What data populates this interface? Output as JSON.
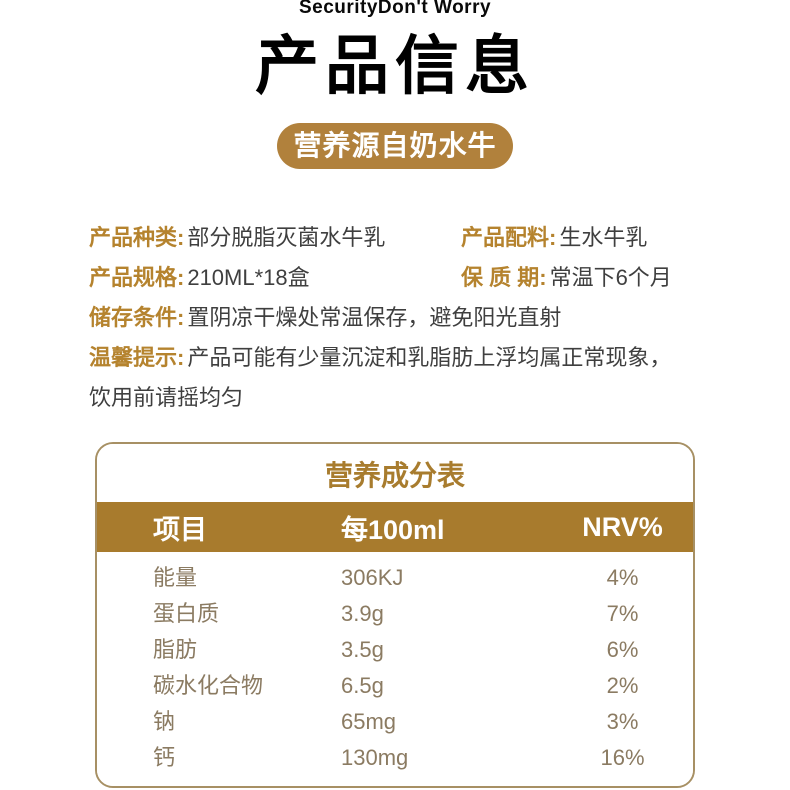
{
  "header": {
    "watermark": "SecurityDon't Worry",
    "title": "产品信息",
    "badge": "营养源自奶水牛"
  },
  "details": {
    "fields": [
      {
        "label": "产品种类:",
        "value": "部分脱脂灭菌水牛乳"
      },
      {
        "label": "产品配料:",
        "value": "生水牛乳"
      },
      {
        "label": "产品规格:",
        "value": "210ML*18盒"
      },
      {
        "label": "保 质 期:",
        "value": "常温下6个月"
      },
      {
        "label": "储存条件:",
        "value": "置阴凉干燥处常温保存，避免阳光直射"
      },
      {
        "label": "温馨提示:",
        "value": "产品可能有少量沉淀和乳脂肪上浮均属正常现象，"
      }
    ],
    "tip_continuation": "饮用前请摇均匀"
  },
  "nutrition_table": {
    "title": "营养成分表",
    "headers": [
      "项目",
      "每100ml",
      "NRV%"
    ],
    "rows": [
      [
        "能量",
        "306KJ",
        "4%"
      ],
      [
        "蛋白质",
        "3.9g",
        "7%"
      ],
      [
        "脂肪",
        "3.5g",
        "6%"
      ],
      [
        "碳水化合物",
        "6.5g",
        "2%"
      ],
      [
        "钠",
        "65mg",
        "3%"
      ],
      [
        "钙",
        "130mg",
        "16%"
      ]
    ]
  },
  "colors": {
    "badge_bg": "#b1813c",
    "label_gold": "#b5832e",
    "table_header_bg": "#a87b2d",
    "table_title_text": "#a87c2e",
    "table_border": "#a79064",
    "table_row_text": "#8b7b62",
    "body_text": "#3f3f3f",
    "title_text": "#000000"
  }
}
